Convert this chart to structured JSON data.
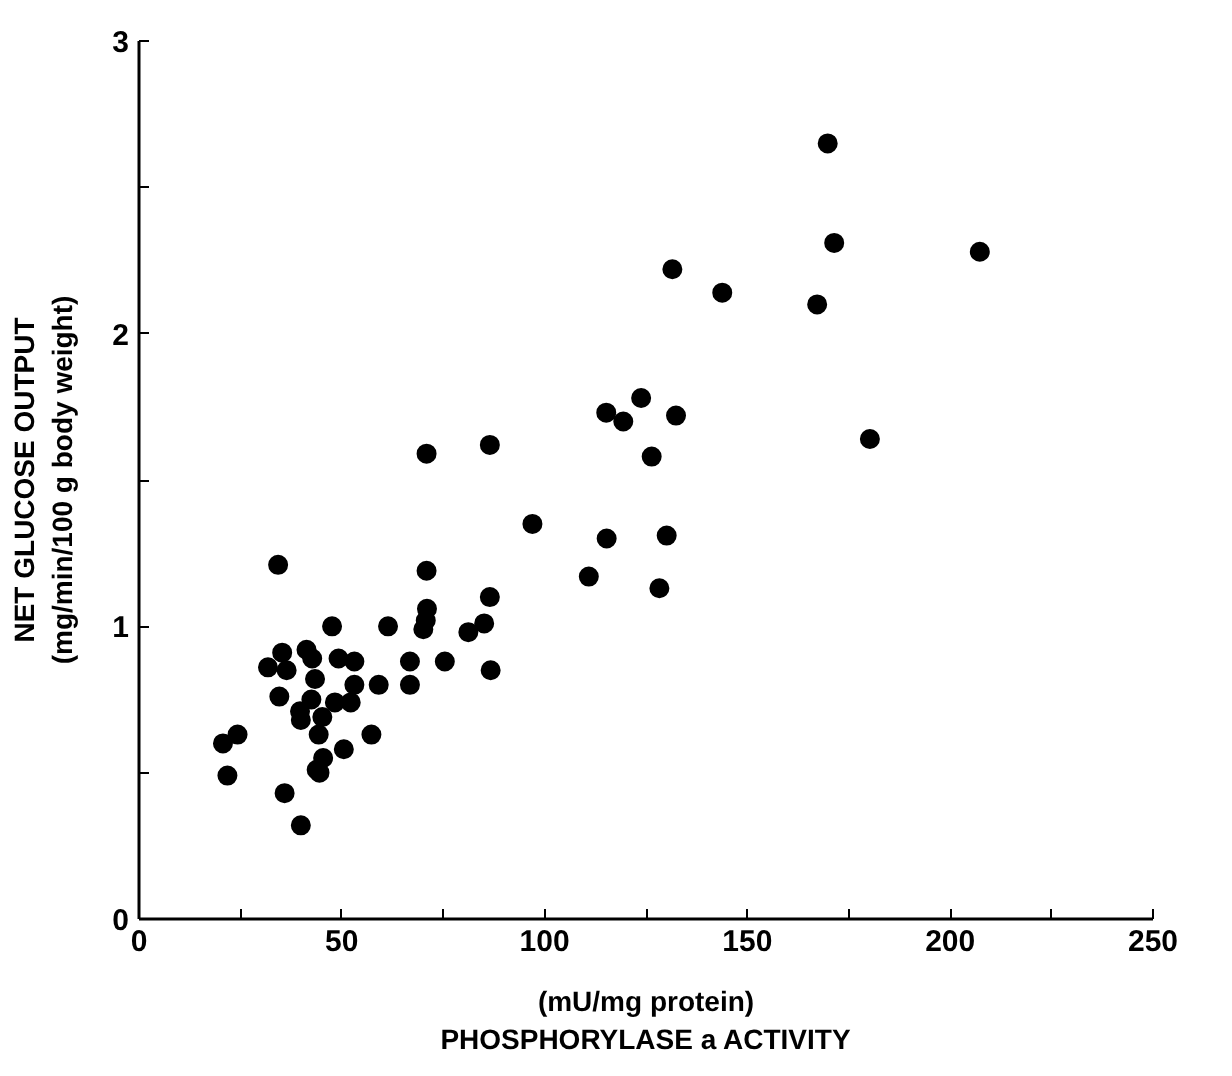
{
  "chart_data": {
    "type": "scatter",
    "xlabel": "(mU/mg protein)\nPHOSPHORYLASE a ACTIVITY",
    "ylabel": "NET GLUCOSE OUTPUT\n(mg/min/100 g body weight)",
    "xlim": [
      0,
      250
    ],
    "ylim": [
      0,
      3
    ],
    "xticks": [
      0,
      {
        "value": 25,
        "label": null
      },
      50,
      {
        "value": 75,
        "label": null
      },
      100,
      {
        "value": 125,
        "label": null
      },
      150,
      {
        "value": 175,
        "label": null
      },
      200,
      {
        "value": 225,
        "label": null
      },
      250
    ],
    "yticks": [
      0,
      {
        "value": 0.5,
        "label": null
      },
      1,
      {
        "value": 1.5,
        "label": null
      },
      2,
      {
        "value": 2.5,
        "label": null
      },
      3
    ],
    "grid": false,
    "marker": "circle",
    "series": [
      {
        "color": "#000000",
        "x": [
          169.8,
          171.4,
          207.3,
          131.5,
          143.8,
          167.2,
          123.8,
          115.2,
          119.4,
          132.4,
          180.2,
          126.4,
          70.9,
          86.5,
          97.0,
          115.3,
          130.1,
          110.9,
          128.3,
          34.3,
          70.9,
          86.5,
          71.0,
          70.7,
          70.1,
          47.6,
          61.4,
          81.2,
          85.1,
          75.4,
          66.8,
          66.8,
          86.7,
          59.1,
          53.1,
          53.1,
          49.2,
          52.2,
          48.3,
          43.4,
          42.7,
          41.3,
          35.3,
          31.8,
          36.4,
          34.6,
          42.5,
          39.7,
          39.9,
          45.2,
          44.3,
          57.3,
          50.5,
          45.4,
          43.8,
          44.5,
          24.3,
          20.7,
          21.8,
          35.9,
          39.9
        ],
        "values": [
          2.65,
          2.31,
          2.28,
          2.22,
          2.14,
          2.1,
          1.78,
          1.73,
          1.7,
          1.72,
          1.64,
          1.58,
          1.59,
          1.62,
          1.35,
          1.3,
          1.31,
          1.17,
          1.13,
          1.21,
          1.19,
          1.1,
          1.06,
          1.02,
          0.99,
          1.0,
          1.0,
          0.98,
          1.01,
          0.88,
          0.88,
          0.8,
          0.85,
          0.8,
          0.88,
          0.8,
          0.89,
          0.74,
          0.74,
          0.82,
          0.89,
          0.92,
          0.91,
          0.86,
          0.85,
          0.76,
          0.75,
          0.71,
          0.68,
          0.69,
          0.63,
          0.63,
          0.58,
          0.55,
          0.51,
          0.5,
          0.63,
          0.6,
          0.49,
          0.43,
          0.32
        ]
      }
    ]
  }
}
